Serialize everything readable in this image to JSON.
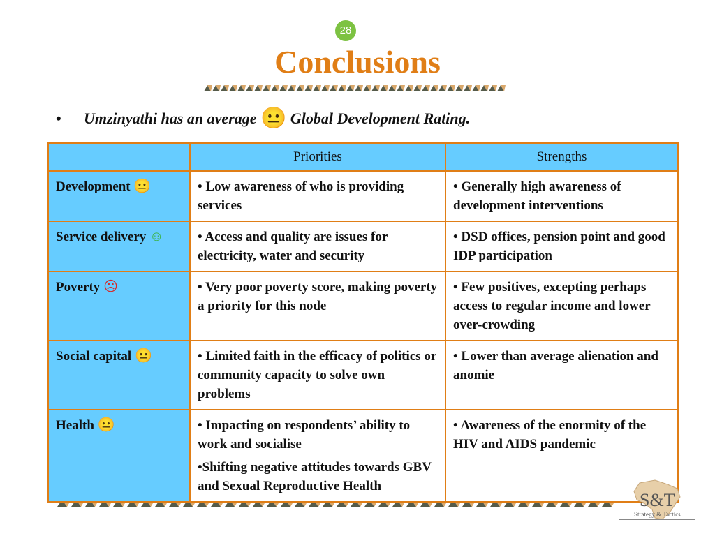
{
  "slide": {
    "page_number": "28",
    "title": "Conclusions",
    "bullet": {
      "marker": "•",
      "text_before": "Umzinyathi has an average",
      "face_icon": "neutral-face-icon",
      "text_after": "Global Development Rating."
    }
  },
  "table": {
    "headers": [
      "",
      "Priorities",
      "Strengths"
    ],
    "rows": [
      {
        "category": "Development",
        "face": "neutral-face-icon",
        "face_glyph": "😐",
        "face_color": "#e0b820",
        "priorities": [
          "• Low awareness of who is providing services"
        ],
        "strengths": [
          "• Generally high awareness of development interventions"
        ]
      },
      {
        "category": "Service delivery",
        "face": "smiley-face-icon",
        "face_glyph": "☺",
        "face_color": "#3cb34a",
        "priorities": [
          "• Access and quality are issues for electricity, water and security"
        ],
        "strengths": [
          "• DSD offices, pension point and good IDP participation"
        ]
      },
      {
        "category": "Poverty",
        "face": "sad-face-icon",
        "face_glyph": "☹",
        "face_color": "#d62828",
        "priorities": [
          "• Very poor poverty score, making poverty a priority for this node"
        ],
        "strengths": [
          "• Few positives, excepting perhaps access to regular income and lower over-crowding"
        ]
      },
      {
        "category": "Social capital",
        "face": "neutral-face-icon",
        "face_glyph": "😐",
        "face_color": "#e0b820",
        "priorities": [
          "• Limited faith in the efficacy of politics or community capacity to solve own problems"
        ],
        "strengths": [
          "• Lower than average alienation and anomie"
        ]
      },
      {
        "category": "Health",
        "face": "neutral-face-icon",
        "face_glyph": "😐",
        "face_color": "#e0b820",
        "priorities": [
          "• Impacting on respondents’ ability to work and socialise",
          "•Shifting negative attitudes towards GBV and Sexual Reproductive Health"
        ],
        "strengths": [
          "• Awareness of the enormity of the HIV and AIDS pandemic"
        ]
      }
    ]
  },
  "logo": {
    "mark": "S&T",
    "tagline": "Strategy & Tactics",
    "icon": "africa-map-icon"
  },
  "colors": {
    "title": "#e07e16",
    "badge": "#7dc242",
    "table_border": "#e07e16",
    "table_highlight": "#66ccff",
    "triangle_dark": "#555b4a",
    "triangle_light": "#d9a86b"
  }
}
